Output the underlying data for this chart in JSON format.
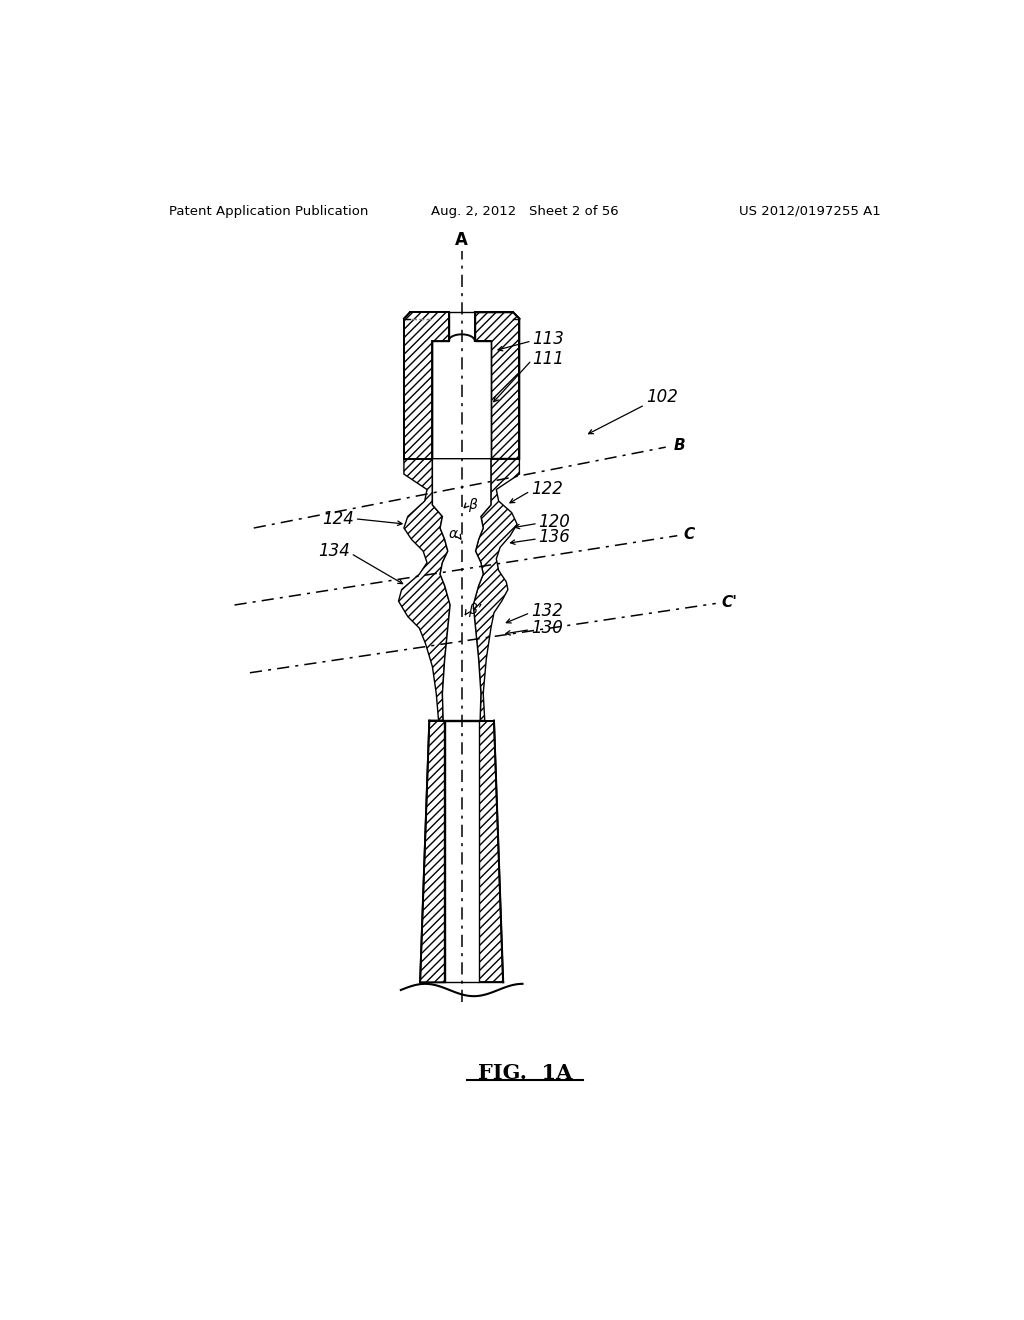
{
  "bg_color": "#ffffff",
  "lc": "#000000",
  "header_left": "Patent Application Publication",
  "header_center": "Aug. 2, 2012   Sheet 2 of 56",
  "header_right": "US 2012/0197255 A1",
  "figure_label": "FIG.  1A",
  "label_A": "A",
  "label_B": "B",
  "label_C": "C",
  "label_Cp": "C'",
  "ref_102": "102",
  "ref_111": "111",
  "ref_113": "113",
  "ref_120": "120",
  "ref_122": "122",
  "ref_124": "124",
  "ref_130": "130",
  "ref_132": "132",
  "ref_134": "134",
  "ref_136": "136",
  "alpha": "α",
  "beta": "β",
  "betap": "β’"
}
